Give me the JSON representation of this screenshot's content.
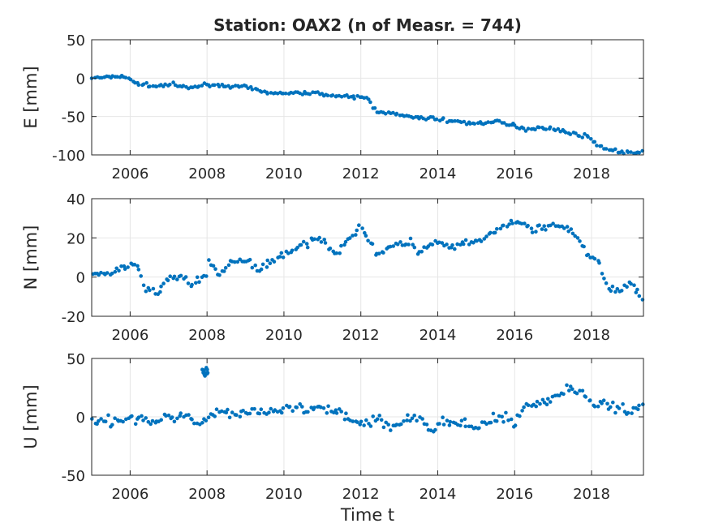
{
  "figure": {
    "title": "Station: OAX2 (n of Measr. = 744)",
    "xlabel": "Time t"
  },
  "colors": {
    "marker": "#0072BD",
    "grid": "#e6e6e6",
    "axis": "#262626"
  },
  "chart_data": [
    {
      "type": "scatter",
      "ylabel": "E [mm]",
      "xlim": [
        2005.0,
        2019.35
      ],
      "ylim": [
        -100,
        50
      ],
      "xticks": [
        2006,
        2008,
        2010,
        2012,
        2014,
        2016,
        2018
      ],
      "yticks": [
        -100,
        -50,
        0,
        50
      ],
      "grid": true,
      "keypoints": [
        [
          2005.0,
          0
        ],
        [
          2005.5,
          2
        ],
        [
          2005.8,
          3
        ],
        [
          2006.2,
          -7
        ],
        [
          2006.7,
          -11
        ],
        [
          2007.1,
          -8
        ],
        [
          2007.5,
          -13
        ],
        [
          2008.0,
          -8
        ],
        [
          2008.5,
          -10
        ],
        [
          2009.0,
          -12
        ],
        [
          2009.5,
          -18
        ],
        [
          2010.0,
          -20
        ],
        [
          2010.5,
          -19
        ],
        [
          2011.0,
          -20
        ],
        [
          2011.4,
          -24
        ],
        [
          2012.0,
          -25
        ],
        [
          2012.15,
          -25
        ],
        [
          2012.4,
          -43
        ],
        [
          2013.0,
          -48
        ],
        [
          2013.5,
          -52
        ],
        [
          2014.0,
          -53
        ],
        [
          2014.5,
          -57
        ],
        [
          2015.0,
          -59
        ],
        [
          2015.5,
          -57
        ],
        [
          2016.0,
          -62
        ],
        [
          2016.3,
          -67
        ],
        [
          2016.6,
          -64
        ],
        [
          2017.0,
          -66
        ],
        [
          2017.5,
          -72
        ],
        [
          2017.9,
          -76
        ],
        [
          2018.2,
          -89
        ],
        [
          2018.6,
          -95
        ],
        [
          2019.0,
          -97
        ],
        [
          2019.35,
          -97
        ]
      ],
      "noise": 1.5
    },
    {
      "type": "scatter",
      "ylabel": "N [mm]",
      "xlim": [
        2005.0,
        2019.35
      ],
      "ylim": [
        -20,
        40
      ],
      "xticks": [
        2006,
        2008,
        2010,
        2012,
        2014,
        2016,
        2018
      ],
      "yticks": [
        -20,
        0,
        20,
        40
      ],
      "grid": true,
      "keypoints": [
        [
          2005.0,
          1
        ],
        [
          2005.5,
          2
        ],
        [
          2006.0,
          6
        ],
        [
          2006.2,
          4
        ],
        [
          2006.4,
          -5
        ],
        [
          2006.7,
          -9
        ],
        [
          2007.0,
          0
        ],
        [
          2007.4,
          0
        ],
        [
          2007.6,
          -4
        ],
        [
          2008.0,
          1
        ],
        [
          2008.05,
          8
        ],
        [
          2008.3,
          2
        ],
        [
          2008.7,
          8
        ],
        [
          2009.0,
          8
        ],
        [
          2009.4,
          4
        ],
        [
          2010.0,
          12
        ],
        [
          2010.5,
          16
        ],
        [
          2011.0,
          20
        ],
        [
          2011.2,
          15
        ],
        [
          2011.4,
          12
        ],
        [
          2011.6,
          18
        ],
        [
          2012.0,
          25
        ],
        [
          2012.2,
          20
        ],
        [
          2012.4,
          12
        ],
        [
          2013.0,
          17
        ],
        [
          2013.3,
          18
        ],
        [
          2013.5,
          12
        ],
        [
          2014.0,
          18
        ],
        [
          2014.3,
          15
        ],
        [
          2014.6,
          16
        ],
        [
          2015.0,
          18
        ],
        [
          2015.5,
          23
        ],
        [
          2016.0,
          29
        ],
        [
          2016.5,
          24
        ],
        [
          2017.0,
          27
        ],
        [
          2017.5,
          23
        ],
        [
          2017.9,
          11
        ],
        [
          2018.2,
          8
        ],
        [
          2018.4,
          -6
        ],
        [
          2018.8,
          -7
        ],
        [
          2019.0,
          -3
        ],
        [
          2019.35,
          -10
        ]
      ],
      "noise": 1.3
    },
    {
      "type": "scatter",
      "ylabel": "U [mm]",
      "xlim": [
        2005.0,
        2019.35
      ],
      "ylim": [
        -50,
        50
      ],
      "xticks": [
        2006,
        2008,
        2010,
        2012,
        2014,
        2016,
        2018
      ],
      "yticks": [
        -50,
        0,
        50
      ],
      "grid": true,
      "keypoints": [
        [
          2005.0,
          -2
        ],
        [
          2005.5,
          -4
        ],
        [
          2006.0,
          0
        ],
        [
          2006.5,
          -6
        ],
        [
          2007.0,
          0
        ],
        [
          2007.5,
          2
        ],
        [
          2007.8,
          -6
        ],
        [
          2008.2,
          5
        ],
        [
          2008.8,
          2
        ],
        [
          2009.3,
          5
        ],
        [
          2009.8,
          3
        ],
        [
          2010.2,
          8
        ],
        [
          2010.6,
          5
        ],
        [
          2011.0,
          6
        ],
        [
          2011.5,
          3
        ],
        [
          2012.0,
          -5
        ],
        [
          2012.5,
          -2
        ],
        [
          2012.8,
          -8
        ],
        [
          2013.2,
          -2
        ],
        [
          2013.5,
          0
        ],
        [
          2013.8,
          -12
        ],
        [
          2014.2,
          -3
        ],
        [
          2014.5,
          -6
        ],
        [
          2014.8,
          -8
        ],
        [
          2015.3,
          -5
        ],
        [
          2015.8,
          1
        ],
        [
          2016.0,
          -6
        ],
        [
          2016.3,
          10
        ],
        [
          2016.7,
          13
        ],
        [
          2017.0,
          15
        ],
        [
          2017.4,
          25
        ],
        [
          2017.8,
          18
        ],
        [
          2018.2,
          10
        ],
        [
          2018.6,
          8
        ],
        [
          2019.0,
          6
        ],
        [
          2019.35,
          12
        ]
      ],
      "cluster": {
        "x": 2007.95,
        "y": 38,
        "n": 10
      },
      "noise": 3.2
    }
  ]
}
